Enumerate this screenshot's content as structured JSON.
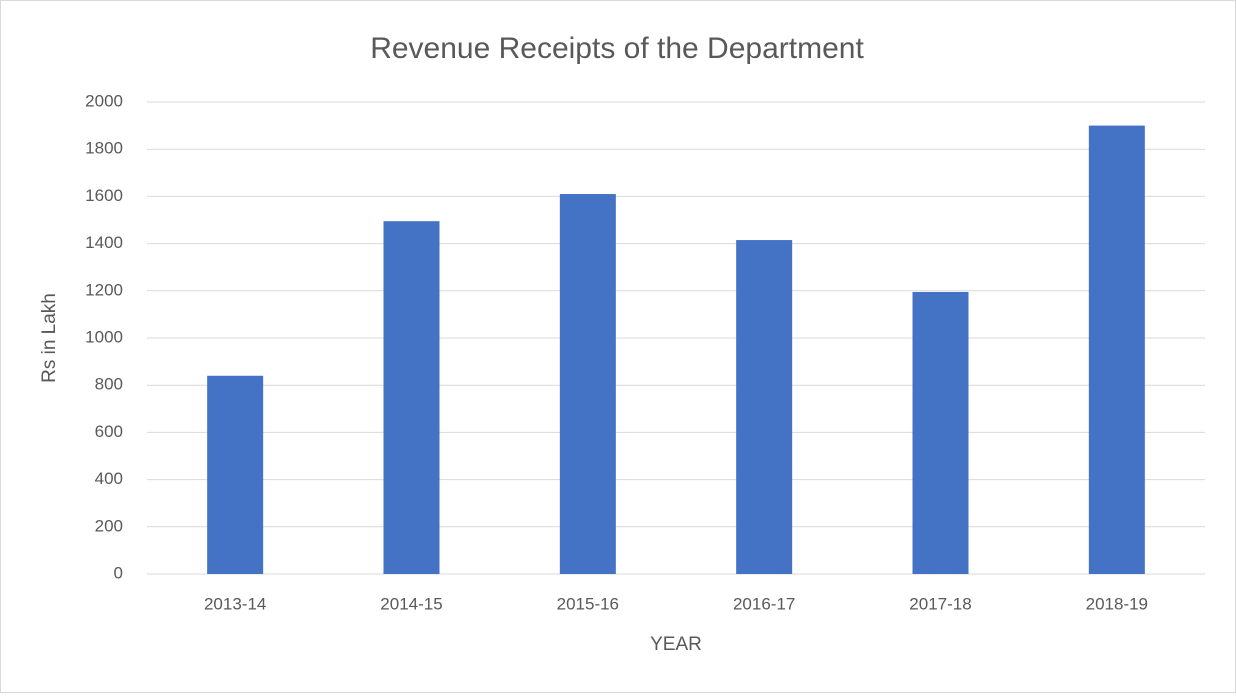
{
  "chart_data": {
    "type": "bar",
    "title": "Revenue Receipts of the Department",
    "x_label": "YEAR",
    "y_label": "Rs in Lakh",
    "categories": [
      "2013-14",
      "2014-15",
      "2015-16",
      "2016-17",
      "2017-18",
      "2018-19"
    ],
    "values": [
      840,
      1495,
      1610,
      1415,
      1195,
      1900
    ],
    "color": "#4472c4",
    "ylim": [
      0,
      2000
    ],
    "yticks": [
      0,
      200,
      400,
      600,
      800,
      1000,
      1200,
      1400,
      1600,
      1800,
      2000
    ],
    "grid": true
  }
}
